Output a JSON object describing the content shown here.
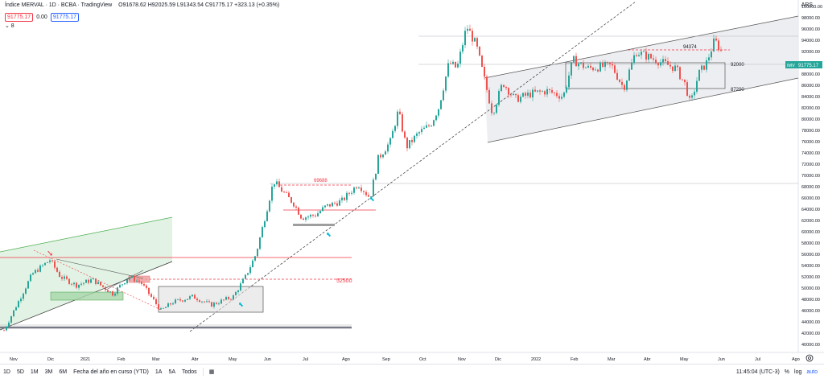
{
  "header": {
    "symbol": "Índice MERVAL · 1D · BCBA · TradingView",
    "ohlc": "O91678.62 H92025.59 L91343.54 C91775.17 +323.13 (+0.35%)",
    "price_sell": "91775.17",
    "spread": "0.00",
    "price_buy": "91775.17",
    "indicators_toggle": "⌄ 8",
    "currency": "ARS"
  },
  "bottom": {
    "ranges": [
      "1D",
      "5D",
      "1M",
      "3M",
      "6M",
      "Fecha del año en curso (YTD)",
      "1A",
      "5A",
      "Todos"
    ],
    "time": "11:45:04 (UTC-3)",
    "pct": "%",
    "log": "log",
    "auto": "auto"
  },
  "chart_data": {
    "type": "candlestick",
    "title": "Índice MERVAL",
    "price_axis": [
      "100000.00",
      "98000.00",
      "96000.00",
      "94000.00",
      "92000.00",
      "90000.00",
      "88000.00",
      "86000.00",
      "84000.00",
      "82000.00",
      "80000.00",
      "78000.00",
      "76000.00",
      "74000.00",
      "72000.00",
      "70000.00",
      "68000.00",
      "66000.00",
      "64000.00",
      "62000.00",
      "60000.00",
      "58000.00",
      "56000.00",
      "54000.00",
      "52000.00",
      "50000.00",
      "48000.00",
      "46000.00",
      "44000.00",
      "42000.00",
      "40000.00"
    ],
    "time_axis": [
      "Nov",
      "Dic",
      "2021",
      "Feb",
      "Mar",
      "Abr",
      "May",
      "Jun",
      "Jul",
      "Ago",
      "Sep",
      "Oct",
      "Nov",
      "Dic",
      "2022",
      "Feb",
      "Mar",
      "Abr",
      "May",
      "Jun",
      "Jul",
      "Ago"
    ],
    "ylim": [
      39000,
      102000
    ],
    "last_price_label": "91775.17",
    "last_price_tag": "IMV",
    "annotations": [
      "94374",
      "92000",
      "87200",
      "69688",
      "52500"
    ],
    "levels": [
      {
        "label": "94374",
        "value": 94374,
        "color": "#f23645"
      },
      {
        "label": "92000",
        "value": 92000,
        "color": "#131722"
      },
      {
        "label": "87200",
        "value": 87200,
        "color": "#131722"
      },
      {
        "label": "69688",
        "value": 69688,
        "color": "#f23645"
      },
      {
        "label": "52500",
        "value": 52500,
        "color": "#f23645"
      }
    ],
    "colors": {
      "up": "#26a69a",
      "down": "#ef5350",
      "channel_fill": "#e9eaee",
      "green_channel": "#dff1e1"
    }
  }
}
